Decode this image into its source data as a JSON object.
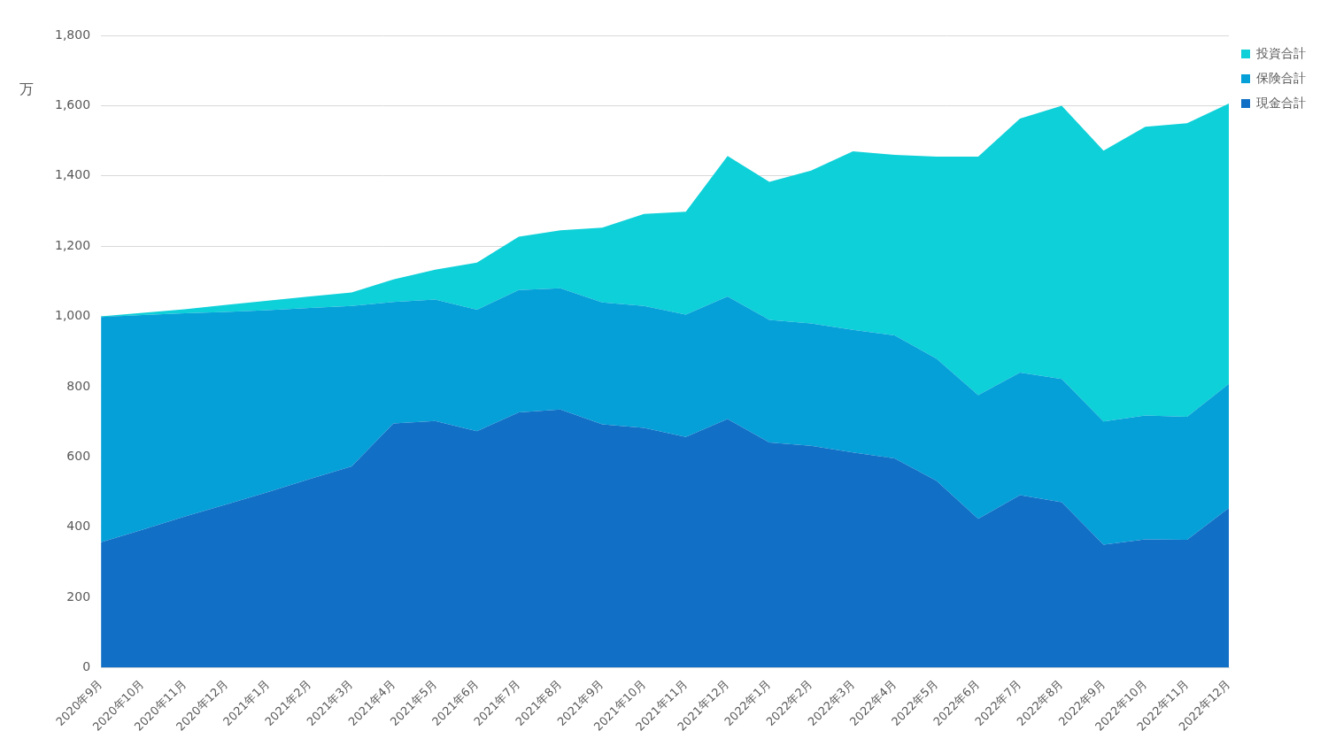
{
  "chart_data": {
    "type": "area",
    "y_label": "万",
    "categories": [
      "2020年9月",
      "2020年10月",
      "2020年11月",
      "2020年12月",
      "2021年1月",
      "2021年2月",
      "2021年3月",
      "2021年4月",
      "2021年5月",
      "2021年6月",
      "2021年7月",
      "2021年8月",
      "2021年9月",
      "2021年10月",
      "2021年11月",
      "2021年12月",
      "2022年1月",
      "2022年2月",
      "2022年3月",
      "2022年4月",
      "2022年5月",
      "2022年6月",
      "2022年7月",
      "2022年8月",
      "2022年9月",
      "2022年10月",
      "2022年11月",
      "2022年12月"
    ],
    "series": [
      {
        "name": "現金合計",
        "color": "#1170c6",
        "values": [
          357,
          393,
          430,
          465,
          500,
          537,
          573,
          695,
          702,
          673,
          727,
          735,
          693,
          683,
          657,
          708,
          641,
          632,
          613,
          596,
          532,
          424,
          491,
          471,
          350,
          365,
          364,
          455
        ]
      },
      {
        "name": "保険合計",
        "color": "#05a0d8",
        "values": [
          641,
          611,
          579,
          548,
          518,
          487,
          457,
          346,
          346,
          346,
          348,
          345,
          347,
          347,
          348,
          349,
          349,
          348,
          349,
          350,
          348,
          352,
          349,
          351,
          351,
          353,
          350,
          353
        ]
      },
      {
        "name": "投資合計",
        "color": "#0ed0d8",
        "values": [
          2,
          6,
          11,
          20,
          27,
          33,
          38,
          64,
          85,
          134,
          152,
          165,
          213,
          262,
          293,
          400,
          393,
          435,
          508,
          514,
          575,
          679,
          723,
          778,
          771,
          822,
          836,
          798
        ]
      }
    ],
    "stacked": true,
    "ylim": [
      0,
      1800
    ],
    "yticks": [
      0,
      200,
      400,
      600,
      800,
      {
        "value": 1000,
        "label": "1,000"
      },
      {
        "value": 1200,
        "label": "1,200"
      },
      {
        "value": 1400,
        "label": "1,400"
      },
      {
        "value": 1600,
        "label": "1,600"
      },
      {
        "value": 1800,
        "label": "1,800"
      }
    ],
    "grid": true,
    "legend": "top right"
  }
}
